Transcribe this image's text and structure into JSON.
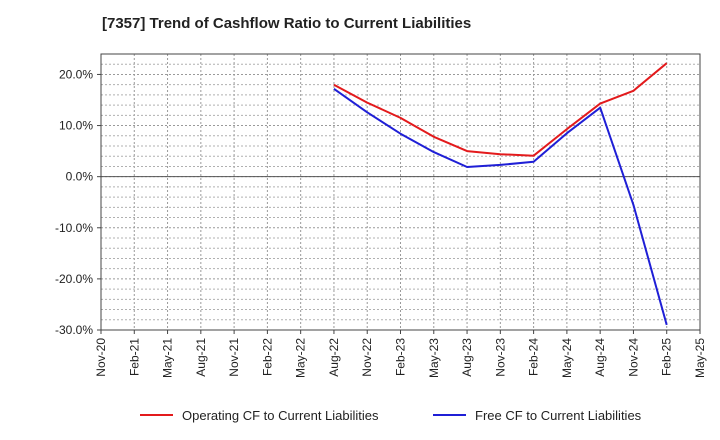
{
  "chart_data": {
    "type": "line",
    "title": "[7357]  Trend of Cashflow Ratio to Current Liabilities",
    "xlabel": "",
    "ylabel": "",
    "categories": [
      "Nov-20",
      "Feb-21",
      "May-21",
      "Aug-21",
      "Nov-21",
      "Feb-22",
      "May-22",
      "Aug-22",
      "Nov-22",
      "Feb-23",
      "May-23",
      "Aug-23",
      "Nov-23",
      "Feb-24",
      "May-24",
      "Aug-24",
      "Nov-24",
      "Feb-25",
      "May-25"
    ],
    "y_ticks": [
      "20.0%",
      "10.0%",
      "0.0%",
      "-10.0%",
      "-20.0%",
      "-30.0%"
    ],
    "y_tick_values": [
      20,
      10,
      0,
      -10,
      -20,
      -30
    ],
    "ylim": [
      -30,
      24
    ],
    "grid": true,
    "legend_position": "bottom",
    "series": [
      {
        "name": "Operating CF to Current Liabilities",
        "color": "#e31a1c",
        "values": [
          null,
          null,
          null,
          null,
          null,
          null,
          null,
          18.0,
          14.5,
          11.5,
          7.8,
          5.0,
          4.4,
          4.1,
          9.3,
          14.3,
          16.8,
          22.2,
          null
        ]
      },
      {
        "name": "Free CF to Current Liabilities",
        "color": "#1f1fd6",
        "values": [
          null,
          null,
          null,
          null,
          null,
          null,
          null,
          17.2,
          12.6,
          8.4,
          4.8,
          1.9,
          2.3,
          2.9,
          8.5,
          13.5,
          -5.5,
          -29.0,
          null
        ]
      }
    ]
  }
}
